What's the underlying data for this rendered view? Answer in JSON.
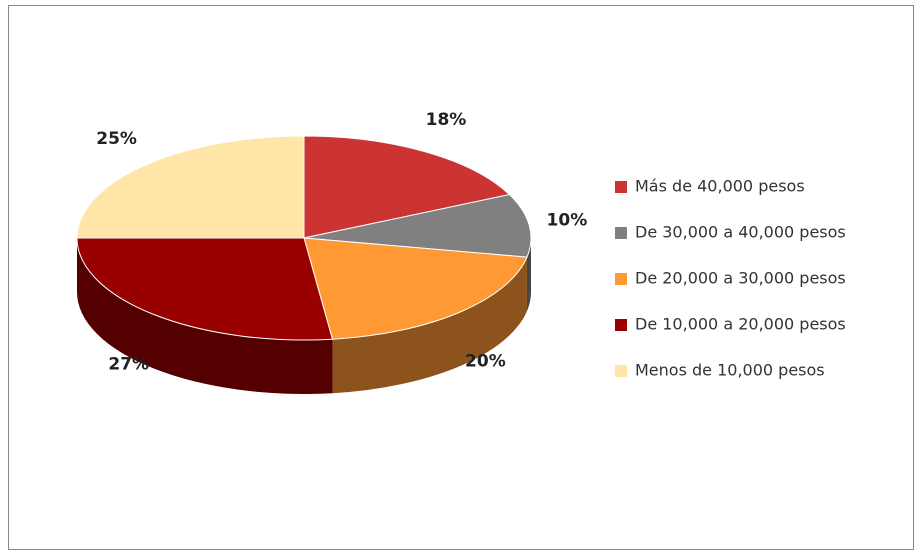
{
  "chart_data": {
    "type": "pie",
    "categories": [
      "Más de 40,000 pesos",
      "De 30,000 a 40,000 pesos",
      "De 20,000 a 30,000 pesos",
      "De 10,000 a 20,000 pesos",
      "Menos de 10,000 pesos"
    ],
    "values": [
      18,
      10,
      20,
      27,
      25
    ],
    "value_labels": [
      "18%",
      "10%",
      "20%",
      "27%",
      "25%"
    ],
    "colors": [
      "#cc3333",
      "#808080",
      "#ff9933",
      "#990000",
      "#ffe6a8"
    ],
    "legend": "right"
  }
}
